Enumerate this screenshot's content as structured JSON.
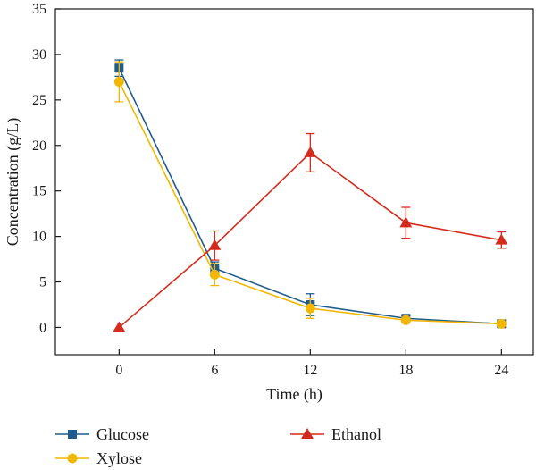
{
  "chart_data": {
    "type": "line",
    "xlabel": "Time (h)",
    "ylabel": "Concentration (g/L)",
    "x": [
      0,
      6,
      12,
      18,
      24
    ],
    "xlim": [
      -4,
      26
    ],
    "ylim": [
      -3,
      35
    ],
    "xticks": [
      "0",
      "6",
      "12",
      "18",
      "24"
    ],
    "yticks": [
      "0",
      "5",
      "10",
      "15",
      "20",
      "25",
      "30",
      "35"
    ],
    "grid": false,
    "legend_position": "bottom",
    "series": [
      {
        "name": "Glucose",
        "color": "#1f5c8b",
        "marker": "square",
        "values": [
          28.5,
          6.5,
          2.5,
          1.0,
          0.4
        ],
        "errors": [
          0.9,
          0.7,
          1.2,
          0.3,
          0.2
        ]
      },
      {
        "name": "Xylose",
        "color": "#f2b705",
        "marker": "circle",
        "values": [
          27.0,
          5.8,
          2.1,
          0.8,
          0.4
        ],
        "errors": [
          2.2,
          1.2,
          1.1,
          0.3,
          0.2
        ]
      },
      {
        "name": "Ethanol",
        "color": "#d52b1e",
        "marker": "triangle",
        "values": [
          0.0,
          9.0,
          19.2,
          11.5,
          9.6
        ],
        "errors": [
          0.0,
          1.6,
          2.1,
          1.7,
          0.9
        ]
      }
    ]
  }
}
